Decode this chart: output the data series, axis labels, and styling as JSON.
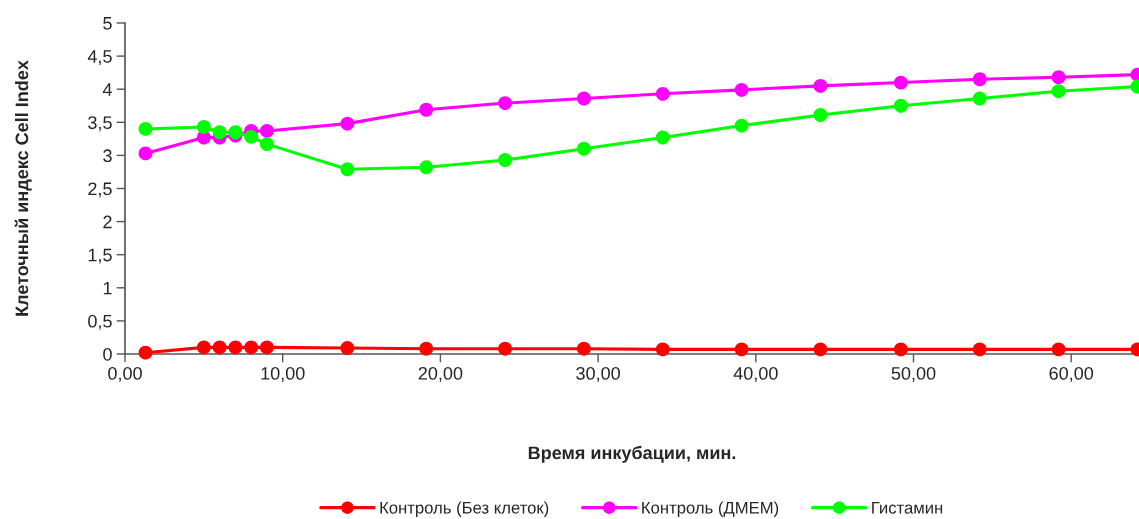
{
  "chart_data": {
    "type": "line",
    "xlabel": "Время инкубации, мин.",
    "ylabel": "Клеточный индекс Cell Index",
    "x": [
      1.3,
      5,
      6,
      7,
      8,
      9,
      14.1,
      19.1,
      24.1,
      29.1,
      34.1,
      39.1,
      44.1,
      49.2,
      54.2,
      59.2,
      64.2
    ],
    "series": [
      {
        "name": "Контроль (Без клеток)",
        "color": "#ff0000",
        "values": [
          0.02,
          0.1,
          0.1,
          0.1,
          0.1,
          0.1,
          0.09,
          0.08,
          0.08,
          0.08,
          0.07,
          0.07,
          0.07,
          0.07,
          0.07,
          0.07,
          0.07
        ]
      },
      {
        "name": "Контроль (ДМЕМ)",
        "color": "#ff00ff",
        "values": [
          3.03,
          3.27,
          3.27,
          3.3,
          3.37,
          3.37,
          3.48,
          3.69,
          3.79,
          3.86,
          3.93,
          3.99,
          4.05,
          4.1,
          4.15,
          4.18,
          4.22
        ]
      },
      {
        "name": "Гистамин",
        "color": "#00ff00",
        "values": [
          3.4,
          3.43,
          3.35,
          3.35,
          3.28,
          3.17,
          2.79,
          2.82,
          2.93,
          3.1,
          3.27,
          3.45,
          3.61,
          3.75,
          3.86,
          3.97,
          4.04
        ]
      }
    ],
    "xlim": [
      0,
      64.3
    ],
    "xticks": [
      {
        "value": 0,
        "label": "0,00"
      },
      {
        "value": 10,
        "label": "10,00"
      },
      {
        "value": 20,
        "label": "20,00"
      },
      {
        "value": 30,
        "label": "30,00"
      },
      {
        "value": 40,
        "label": "40,00"
      },
      {
        "value": 50,
        "label": "50,00"
      },
      {
        "value": 60,
        "label": "60,00"
      }
    ],
    "ylim": [
      0,
      5
    ],
    "yticks": [
      0,
      {
        "value": 0.5,
        "label": "0,5"
      },
      1,
      {
        "value": 1.5,
        "label": "1,5"
      },
      2,
      {
        "value": 2.5,
        "label": "2,5"
      },
      3,
      {
        "value": 3.5,
        "label": "3,5"
      },
      4,
      {
        "value": 4.5,
        "label": "4,5"
      },
      5
    ],
    "legend": "bottom",
    "marker": "circle",
    "line_style": "solid"
  }
}
